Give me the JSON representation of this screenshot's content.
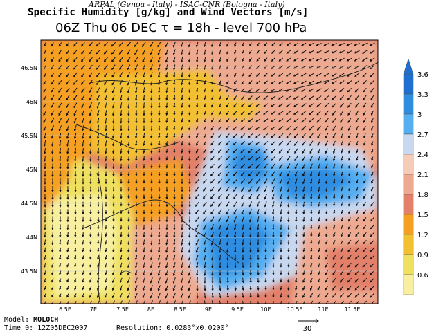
{
  "header": {
    "credit": "ARPAL (Genoa - Italy)  -  ISAC-CNR (Bologna - Italy)",
    "title": "Specific Humidity [g/kg] and Wind Vectors [m/s]",
    "subtitle": "06Z Thu 06 DEC  τ = 18h  -  level 700 hPa"
  },
  "map": {
    "lat_labels": [
      "46.5N",
      "46N",
      "45.5N",
      "45N",
      "44.5N",
      "44N",
      "43.5N"
    ],
    "lon_labels": [
      "6.5E",
      "7E",
      "7.5E",
      "8E",
      "8.5E",
      "9E",
      "9.5E",
      "10E",
      "10.5E",
      "11E",
      "11.5E"
    ],
    "lat_range": [
      43.05,
      46.9
    ],
    "lon_range": [
      6.05,
      11.85
    ]
  },
  "colorbar": {
    "levels": [
      "3.6",
      "3.3",
      "3",
      "2.7",
      "2.4",
      "2.1",
      "1.8",
      "1.5",
      "1.2",
      "0.9",
      "0.6"
    ],
    "colors": [
      "#1f6fd0",
      "#2f8de0",
      "#55aef0",
      "#c8d8f0",
      "#f4ccb8",
      "#eeaa90",
      "#e2806a",
      "#f5a020",
      "#f2c030",
      "#f0e060",
      "#f8f0a0"
    ]
  },
  "footer": {
    "model_label": "Model:",
    "model_name": "MOLOCH",
    "time_label": "Time 0: 12Z05DEC2007",
    "resolution": "Resolution: 0.0283°x0.0200°",
    "vector_scale": "30"
  }
}
